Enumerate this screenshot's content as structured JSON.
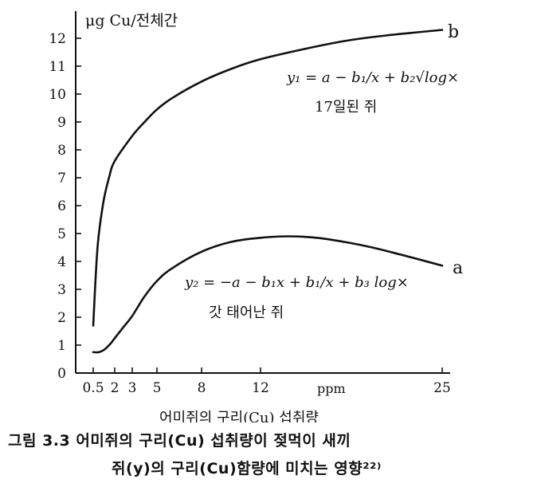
{
  "chart_data": {
    "type": "line",
    "ylabel": "μg Cu/전체간",
    "xlabel": "어미쥐의 구리(Cu) 섭취량",
    "x_unit": "ppm",
    "ylim": [
      0,
      12.6
    ],
    "xlim": [
      0,
      25
    ],
    "y_ticks": [
      0,
      1,
      2,
      3,
      4,
      5,
      6,
      7,
      8,
      9,
      10,
      11,
      12
    ],
    "x_ticks": [
      {
        "value": 0.5,
        "label": "0.5"
      },
      {
        "value": 2,
        "label": "2"
      },
      {
        "value": 3,
        "label": "3"
      },
      {
        "value": 5,
        "label": "5"
      },
      {
        "value": 8,
        "label": "8"
      },
      {
        "value": 12,
        "label": "12"
      },
      {
        "value": 25,
        "label": "25"
      }
    ],
    "grid": false,
    "series": [
      {
        "name": "b",
        "x": [
          0.5,
          0.8,
          1.2,
          1.6,
          2,
          3,
          4,
          5,
          6,
          8,
          10,
          12,
          15,
          18,
          21,
          25
        ],
        "y": [
          1.7,
          4.5,
          6.1,
          7.0,
          7.6,
          8.5,
          9.0,
          9.45,
          9.85,
          10.45,
          10.9,
          11.25,
          11.6,
          11.9,
          12.1,
          12.3
        ],
        "equation": "y₁ = a − b₁/x + b₂√log×",
        "annotation": "17일된 쥐"
      },
      {
        "name": "a",
        "x": [
          0.5,
          0.9,
          1.3,
          1.7,
          2,
          2.5,
          3,
          4,
          5,
          6,
          8,
          10,
          12,
          14,
          16,
          18,
          20,
          22,
          25
        ],
        "y": [
          0.75,
          0.75,
          0.85,
          1.05,
          1.25,
          1.65,
          2.05,
          2.75,
          3.3,
          3.75,
          4.35,
          4.7,
          4.85,
          4.9,
          4.85,
          4.7,
          4.5,
          4.25,
          3.85
        ],
        "equation": "y₂ = −a − b₁x + b₁/x + b₃ log×",
        "annotation": "갓 태어난 쥐"
      }
    ]
  },
  "caption": {
    "line1": "그림 3.3  어미쥐의 구리(Cu) 섭취량이 젖먹이 새끼",
    "line2": "쥐(y)의 구리(Cu)함량에 미치는 영향²²⁾"
  }
}
